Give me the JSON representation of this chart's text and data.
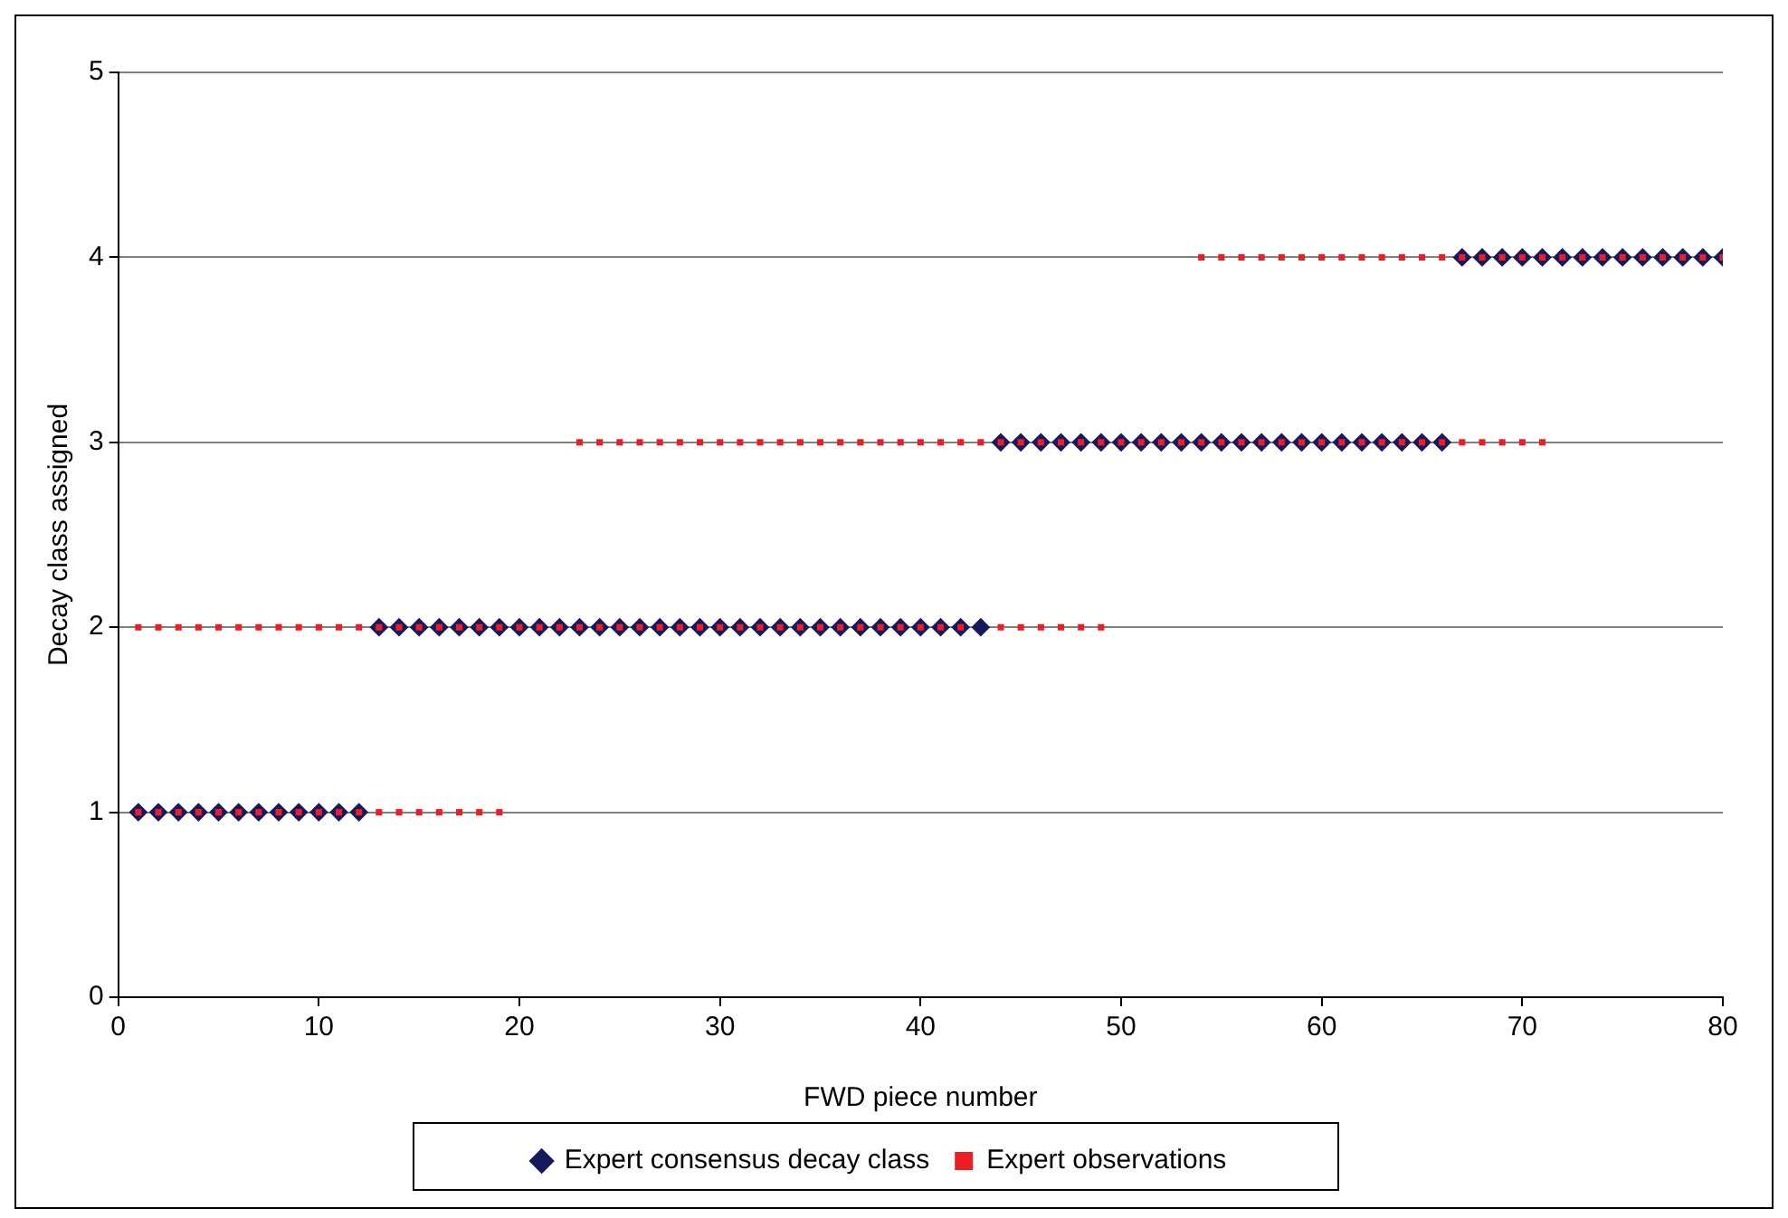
{
  "chart_data": {
    "type": "scatter",
    "xlabel": "FWD piece number",
    "ylabel": "Decay class assigned",
    "xlim": [
      0,
      80
    ],
    "xticks": [
      0,
      10,
      20,
      30,
      40,
      50,
      60,
      70,
      80
    ],
    "ylim": [
      0,
      5
    ],
    "yticks": [
      0,
      1,
      2,
      3,
      4,
      5
    ],
    "grid": "y",
    "legend": "bottom",
    "series": [
      {
        "name": "Expert consensus decay class",
        "color": "#141a5c",
        "marker": "diamond",
        "x": [
          1,
          2,
          3,
          4,
          5,
          6,
          7,
          8,
          9,
          10,
          11,
          12,
          13,
          14,
          15,
          16,
          17,
          18,
          19,
          20,
          21,
          22,
          23,
          24,
          25,
          26,
          27,
          28,
          29,
          30,
          31,
          32,
          33,
          34,
          35,
          36,
          37,
          38,
          39,
          40,
          41,
          42,
          43,
          44,
          45,
          46,
          47,
          48,
          49,
          50,
          51,
          52,
          53,
          54,
          55,
          56,
          57,
          58,
          59,
          60,
          61,
          62,
          63,
          64,
          65,
          66,
          67,
          68,
          69,
          70,
          71,
          72,
          73,
          74,
          75,
          76,
          77,
          78,
          79,
          80
        ],
        "values": [
          1,
          1,
          1,
          1,
          1,
          1,
          1,
          1,
          1,
          1,
          1,
          1,
          2,
          2,
          2,
          2,
          2,
          2,
          2,
          2,
          2,
          2,
          2,
          2,
          2,
          2,
          2,
          2,
          2,
          2,
          2,
          2,
          2,
          2,
          2,
          2,
          2,
          2,
          2,
          2,
          2,
          2,
          2,
          3,
          3,
          3,
          3,
          3,
          3,
          3,
          3,
          3,
          3,
          3,
          3,
          3,
          3,
          3,
          3,
          3,
          3,
          3,
          3,
          3,
          3,
          3,
          4,
          4,
          4,
          4,
          4,
          4,
          4,
          4,
          4,
          4,
          4,
          4,
          4,
          4
        ]
      },
      {
        "name": "Expert observations",
        "color": "#ee1c25",
        "marker": "square",
        "x": [
          1,
          2,
          3,
          4,
          5,
          6,
          7,
          8,
          9,
          10,
          11,
          12,
          13,
          14,
          15,
          16,
          17,
          18,
          19,
          1,
          2,
          3,
          4,
          5,
          6,
          7,
          8,
          9,
          10,
          11,
          12,
          13,
          14,
          15,
          16,
          17,
          18,
          19,
          20,
          21,
          22,
          23,
          24,
          25,
          26,
          27,
          28,
          29,
          30,
          31,
          32,
          33,
          34,
          35,
          36,
          37,
          38,
          39,
          40,
          41,
          42,
          44,
          45,
          46,
          47,
          48,
          49,
          23,
          24,
          25,
          26,
          27,
          28,
          29,
          30,
          31,
          32,
          33,
          34,
          35,
          36,
          37,
          38,
          39,
          40,
          41,
          42,
          43,
          44,
          45,
          46,
          47,
          48,
          49,
          50,
          51,
          52,
          53,
          54,
          55,
          56,
          57,
          58,
          59,
          60,
          61,
          62,
          63,
          64,
          65,
          66,
          67,
          68,
          69,
          70,
          71,
          54,
          55,
          56,
          57,
          58,
          59,
          60,
          61,
          62,
          63,
          64,
          65,
          66,
          67,
          68,
          69,
          70,
          71,
          72,
          73,
          74,
          75,
          76,
          77,
          78,
          79,
          80
        ],
        "values": [
          1,
          1,
          1,
          1,
          1,
          1,
          1,
          1,
          1,
          1,
          1,
          1,
          1,
          1,
          1,
          1,
          1,
          1,
          1,
          2,
          2,
          2,
          2,
          2,
          2,
          2,
          2,
          2,
          2,
          2,
          2,
          2,
          2,
          2,
          2,
          2,
          2,
          2,
          2,
          2,
          2,
          2,
          2,
          2,
          2,
          2,
          2,
          2,
          2,
          2,
          2,
          2,
          2,
          2,
          2,
          2,
          2,
          2,
          2,
          2,
          2,
          2,
          2,
          2,
          2,
          2,
          2,
          3,
          3,
          3,
          3,
          3,
          3,
          3,
          3,
          3,
          3,
          3,
          3,
          3,
          3,
          3,
          3,
          3,
          3,
          3,
          3,
          3,
          3,
          3,
          3,
          3,
          3,
          3,
          3,
          3,
          3,
          3,
          3,
          3,
          3,
          3,
          3,
          3,
          3,
          3,
          3,
          3,
          3,
          3,
          3,
          3,
          3,
          3,
          3,
          3,
          4,
          4,
          4,
          4,
          4,
          4,
          4,
          4,
          4,
          4,
          4,
          4,
          4,
          4,
          4,
          4,
          4,
          4,
          4,
          4,
          4,
          4,
          4,
          4,
          4,
          4,
          4
        ]
      }
    ]
  }
}
